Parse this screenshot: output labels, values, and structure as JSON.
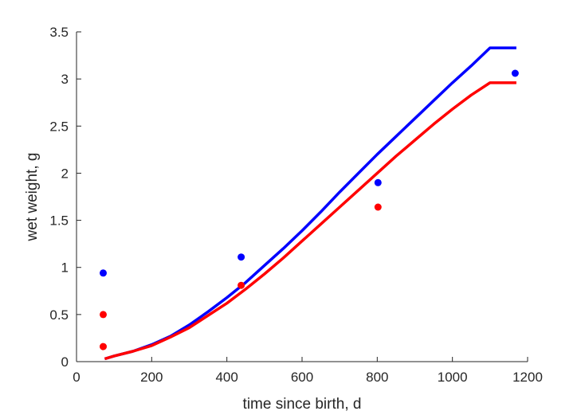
{
  "chart_data": {
    "type": "line",
    "title": "",
    "xlabel": "time since birth, d",
    "ylabel": "wet weight, g",
    "xlim": [
      0,
      1200
    ],
    "ylim": [
      0,
      3.5
    ],
    "xticks": [
      0,
      200,
      400,
      600,
      800,
      1000,
      1200
    ],
    "xtick_labels": [
      "0",
      "200",
      "400",
      "600",
      "800",
      "1000",
      "1200"
    ],
    "yticks": [
      0,
      0.5,
      1,
      1.5,
      2,
      2.5,
      3,
      3.5
    ],
    "ytick_labels": [
      "0",
      "0.5",
      "1",
      "1.5",
      "2",
      "2.5",
      "3",
      "3.5"
    ],
    "grid": false,
    "legend": "none",
    "series": [
      {
        "kind": "line",
        "color": "#0000ff",
        "x": [
          75,
          100,
          150,
          200,
          250,
          300,
          350,
          400,
          450,
          500,
          550,
          600,
          650,
          700,
          750,
          800,
          850,
          900,
          950,
          1000,
          1050,
          1100,
          1170
        ],
        "y": [
          0.03,
          0.06,
          0.11,
          0.18,
          0.27,
          0.39,
          0.53,
          0.68,
          0.84,
          1.02,
          1.2,
          1.39,
          1.59,
          1.8,
          2.0,
          2.2,
          2.39,
          2.58,
          2.77,
          2.96,
          3.14,
          3.33,
          3.33
        ]
      },
      {
        "kind": "line",
        "color": "#ff0000",
        "x": [
          75,
          100,
          150,
          200,
          250,
          300,
          350,
          400,
          450,
          500,
          550,
          600,
          650,
          700,
          750,
          800,
          850,
          900,
          950,
          1000,
          1050,
          1100,
          1170
        ],
        "y": [
          0.03,
          0.06,
          0.11,
          0.17,
          0.26,
          0.36,
          0.49,
          0.62,
          0.77,
          0.93,
          1.1,
          1.28,
          1.46,
          1.64,
          1.82,
          2.0,
          2.18,
          2.35,
          2.52,
          2.68,
          2.83,
          2.96,
          2.96
        ]
      },
      {
        "kind": "scatter",
        "color": "#0000ff",
        "x": [
          71,
          438,
          802,
          1167
        ],
        "y": [
          0.94,
          1.11,
          1.9,
          3.06
        ]
      },
      {
        "kind": "scatter",
        "color": "#ff0000",
        "x": [
          71,
          71,
          438,
          802
        ],
        "y": [
          0.5,
          0.16,
          0.81,
          1.64
        ]
      }
    ]
  }
}
